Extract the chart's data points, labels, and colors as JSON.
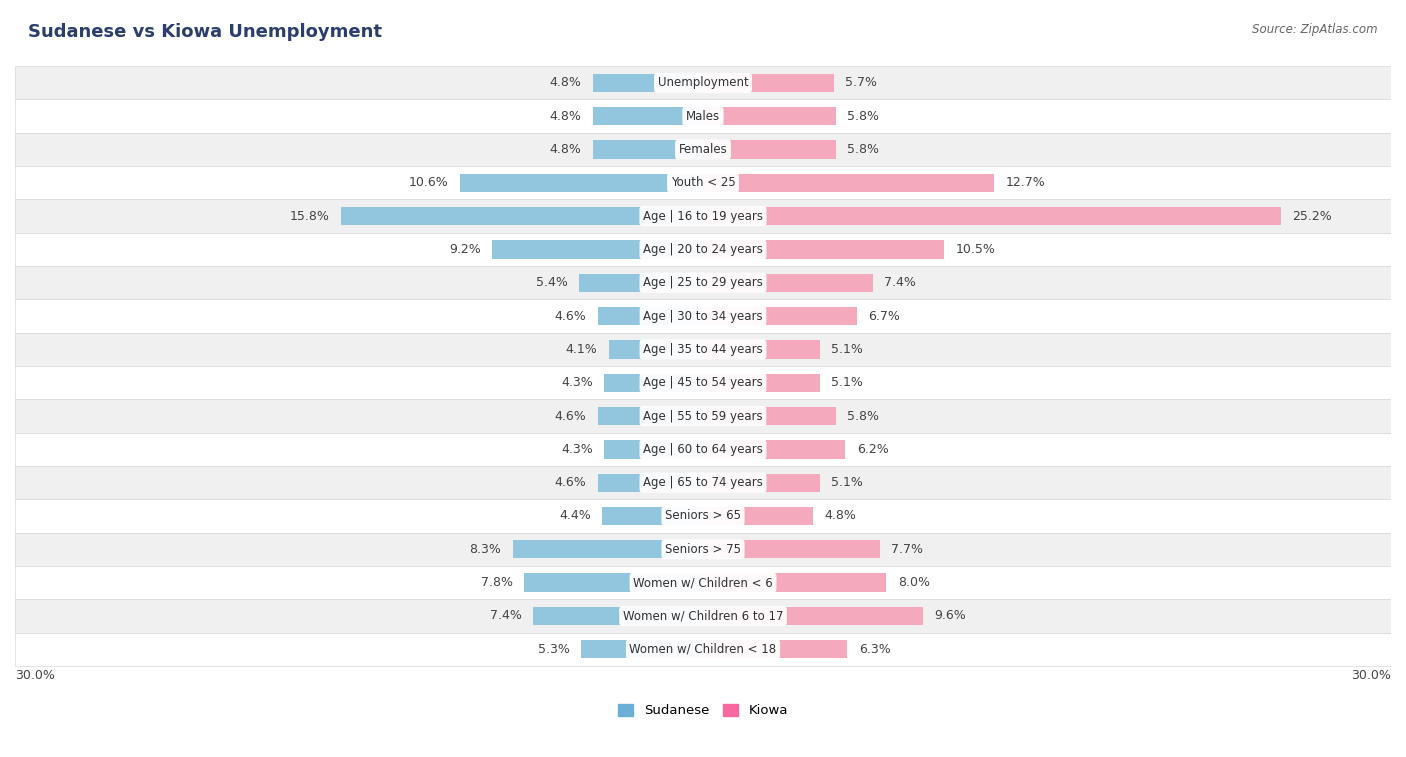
{
  "title": "Sudanese vs Kiowa Unemployment",
  "source": "Source: ZipAtlas.com",
  "categories": [
    "Unemployment",
    "Males",
    "Females",
    "Youth < 25",
    "Age | 16 to 19 years",
    "Age | 20 to 24 years",
    "Age | 25 to 29 years",
    "Age | 30 to 34 years",
    "Age | 35 to 44 years",
    "Age | 45 to 54 years",
    "Age | 55 to 59 years",
    "Age | 60 to 64 years",
    "Age | 65 to 74 years",
    "Seniors > 65",
    "Seniors > 75",
    "Women w/ Children < 6",
    "Women w/ Children 6 to 17",
    "Women w/ Children < 18"
  ],
  "sudanese": [
    4.8,
    4.8,
    4.8,
    10.6,
    15.8,
    9.2,
    5.4,
    4.6,
    4.1,
    4.3,
    4.6,
    4.3,
    4.6,
    4.4,
    8.3,
    7.8,
    7.4,
    5.3
  ],
  "kiowa": [
    5.7,
    5.8,
    5.8,
    12.7,
    25.2,
    10.5,
    7.4,
    6.7,
    5.1,
    5.1,
    5.8,
    6.2,
    5.1,
    4.8,
    7.7,
    8.0,
    9.6,
    6.3
  ],
  "sudanese_color": "#92c5de",
  "kiowa_color": "#f4a9bc",
  "fig_bg": "#ffffff",
  "row_bg_light": "#ffffff",
  "row_bg_dark": "#f0f0f0",
  "row_border": "#d8d8d8",
  "xlim": 30.0,
  "legend_labels": [
    "Sudanese",
    "Kiowa"
  ],
  "sudanese_legend_color": "#6baed6",
  "kiowa_legend_color": "#f768a1",
  "label_fontsize": 9,
  "title_fontsize": 13,
  "source_fontsize": 8.5
}
